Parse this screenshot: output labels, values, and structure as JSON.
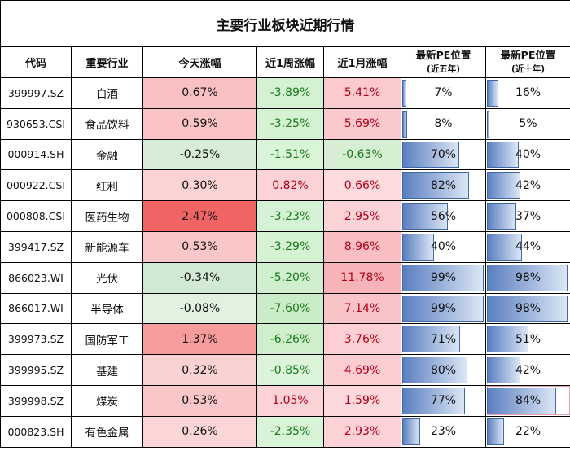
{
  "title": "主要行业板块近期行情",
  "headers": {
    "code": "代码",
    "industry": "重要行业",
    "today": "今天涨幅",
    "week": "近1周涨幅",
    "month": "近1月涨幅",
    "pe5_main": "最新PE位置",
    "pe5_sub": "(近五年)",
    "pe10_main": "最新PE位置",
    "pe10_sub": "(近十年)"
  },
  "colors": {
    "negative_text": "#1a7a1a",
    "positive_text": "#b00018",
    "bar_dark": "#5a7fc0",
    "bar_light": "#dce6f5",
    "bar_border": "#3f68a8"
  },
  "rows": [
    {
      "code": "399997.SZ",
      "industry": "白酒",
      "today": "0.67%",
      "week": "-3.89%",
      "month": "5.41%",
      "pe5": "7%",
      "pe10": "16%"
    },
    {
      "code": "930653.CSI",
      "industry": "食品饮料",
      "today": "0.59%",
      "week": "-3.25%",
      "month": "5.69%",
      "pe5": "8%",
      "pe10": "5%"
    },
    {
      "code": "000914.SH",
      "industry": "金融",
      "today": "-0.25%",
      "week": "-1.51%",
      "month": "-0.63%",
      "pe5": "70%",
      "pe10": "40%"
    },
    {
      "code": "000922.CSI",
      "industry": "红利",
      "today": "0.30%",
      "week": "0.82%",
      "month": "0.66%",
      "pe5": "82%",
      "pe10": "42%"
    },
    {
      "code": "000808.CSI",
      "industry": "医药生物",
      "today": "2.47%",
      "week": "-3.23%",
      "month": "2.95%",
      "pe5": "56%",
      "pe10": "37%"
    },
    {
      "code": "399417.SZ",
      "industry": "新能源车",
      "today": "0.53%",
      "week": "-3.29%",
      "month": "8.96%",
      "pe5": "40%",
      "pe10": "44%"
    },
    {
      "code": "866023.WI",
      "industry": "光伏",
      "today": "-0.34%",
      "week": "-5.20%",
      "month": "11.78%",
      "pe5": "99%",
      "pe10": "98%"
    },
    {
      "code": "866017.WI",
      "industry": "半导体",
      "today": "-0.08%",
      "week": "-7.60%",
      "month": "7.14%",
      "pe5": "99%",
      "pe10": "98%"
    },
    {
      "code": "399973.SZ",
      "industry": "国防军工",
      "today": "1.37%",
      "week": "-6.26%",
      "month": "3.76%",
      "pe5": "71%",
      "pe10": "51%"
    },
    {
      "code": "399995.SZ",
      "industry": "基建",
      "today": "0.32%",
      "week": "-0.85%",
      "month": "4.69%",
      "pe5": "80%",
      "pe10": "42%"
    },
    {
      "code": "399998.SZ",
      "industry": "煤炭",
      "today": "0.53%",
      "week": "1.05%",
      "month": "1.59%",
      "pe5": "77%",
      "pe10": "84%"
    },
    {
      "code": "000823.SH",
      "industry": "有色金属",
      "today": "0.26%",
      "week": "-2.35%",
      "month": "2.93%",
      "pe5": "23%",
      "pe10": "22%"
    }
  ]
}
